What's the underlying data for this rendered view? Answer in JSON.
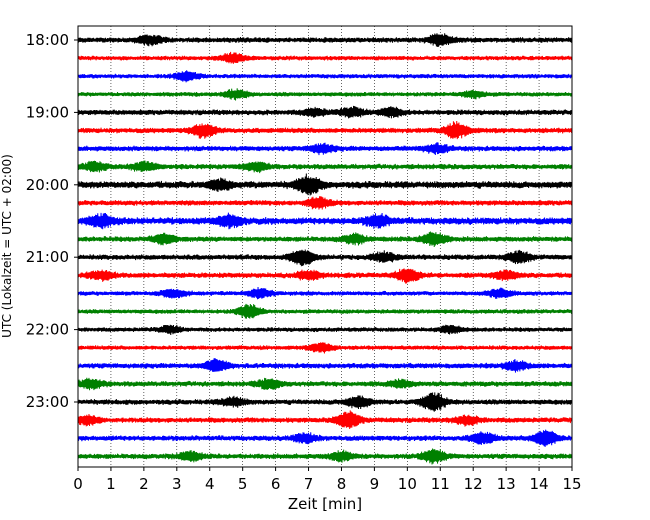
{
  "chart_data": {
    "type": "line",
    "title": "",
    "xlabel": "Zeit  [min]",
    "ylabel": "UTC (Lokalzeit = UTC + 02:00)",
    "xlim": [
      0,
      15
    ],
    "x_ticks": [
      "0",
      "1",
      "2",
      "3",
      "4",
      "5",
      "6",
      "7",
      "8",
      "9",
      "10",
      "11",
      "12",
      "13",
      "14",
      "15"
    ],
    "y_ticks": [
      "18:00",
      "19:00",
      "20:00",
      "21:00",
      "22:00",
      "23:00"
    ],
    "grid": "vertical dotted at each minute",
    "trace_interval_minutes": 15,
    "trace_colors": [
      "#000000",
      "#ff0000",
      "#0000ff",
      "#008000"
    ],
    "traces": [
      {
        "start": "18:00",
        "color": "#000000",
        "amp": 3,
        "bursts": [
          [
            2.2,
            4
          ],
          [
            11.0,
            5
          ]
        ]
      },
      {
        "start": "18:15",
        "color": "#ff0000",
        "amp": 2.5,
        "bursts": [
          [
            4.7,
            4
          ]
        ]
      },
      {
        "start": "18:30",
        "color": "#0000ff",
        "amp": 2.5,
        "bursts": [
          [
            3.3,
            4
          ]
        ]
      },
      {
        "start": "18:45",
        "color": "#008000",
        "amp": 2.5,
        "bursts": [
          [
            4.8,
            4
          ],
          [
            12,
            3
          ]
        ]
      },
      {
        "start": "19:00",
        "color": "#000000",
        "amp": 3,
        "bursts": [
          [
            7.2,
            3
          ],
          [
            8.3,
            4
          ],
          [
            9.5,
            4
          ]
        ]
      },
      {
        "start": "19:15",
        "color": "#ff0000",
        "amp": 3,
        "bursts": [
          [
            3.8,
            6
          ],
          [
            11.5,
            7
          ]
        ]
      },
      {
        "start": "19:30",
        "color": "#0000ff",
        "amp": 3,
        "bursts": [
          [
            7.4,
            4
          ],
          [
            10.9,
            4
          ]
        ]
      },
      {
        "start": "19:45",
        "color": "#008000",
        "amp": 3,
        "bursts": [
          [
            0.5,
            4
          ],
          [
            2.0,
            4
          ],
          [
            5.4,
            4
          ]
        ]
      },
      {
        "start": "20:00",
        "color": "#000000",
        "amp": 4,
        "bursts": [
          [
            7.0,
            8
          ],
          [
            4.3,
            4
          ]
        ]
      },
      {
        "start": "20:15",
        "color": "#ff0000",
        "amp": 3,
        "bursts": [
          [
            7.3,
            5
          ]
        ]
      },
      {
        "start": "20:30",
        "color": "#0000ff",
        "amp": 4,
        "bursts": [
          [
            0.7,
            5
          ],
          [
            4.6,
            5
          ],
          [
            9.1,
            5
          ]
        ]
      },
      {
        "start": "20:45",
        "color": "#008000",
        "amp": 3,
        "bursts": [
          [
            10.8,
            6
          ],
          [
            8.4,
            4
          ],
          [
            2.6,
            4
          ]
        ]
      },
      {
        "start": "21:00",
        "color": "#000000",
        "amp": 3,
        "bursts": [
          [
            6.8,
            7
          ],
          [
            9.3,
            4
          ],
          [
            13.4,
            5
          ]
        ]
      },
      {
        "start": "21:15",
        "color": "#ff0000",
        "amp": 3,
        "bursts": [
          [
            0.7,
            4
          ],
          [
            7.0,
            4
          ],
          [
            10.0,
            6
          ],
          [
            13.0,
            4
          ]
        ]
      },
      {
        "start": "21:30",
        "color": "#0000ff",
        "amp": 2.5,
        "bursts": [
          [
            2.9,
            4
          ],
          [
            5.5,
            4
          ],
          [
            12.8,
            4
          ]
        ]
      },
      {
        "start": "21:45",
        "color": "#008000",
        "amp": 2.5,
        "bursts": [
          [
            5.2,
            6
          ]
        ]
      },
      {
        "start": "22:00",
        "color": "#000000",
        "amp": 2.5,
        "bursts": [
          [
            2.8,
            3
          ],
          [
            11.3,
            3
          ]
        ]
      },
      {
        "start": "22:15",
        "color": "#ff0000",
        "amp": 2.5,
        "bursts": [
          [
            7.4,
            4
          ]
        ]
      },
      {
        "start": "22:30",
        "color": "#0000ff",
        "amp": 3,
        "bursts": [
          [
            4.2,
            5
          ],
          [
            13.3,
            4
          ]
        ]
      },
      {
        "start": "22:45",
        "color": "#008000",
        "amp": 3,
        "bursts": [
          [
            0.4,
            4
          ],
          [
            5.8,
            4
          ],
          [
            9.8,
            3
          ]
        ]
      },
      {
        "start": "23:00",
        "color": "#000000",
        "amp": 3,
        "bursts": [
          [
            10.8,
            8
          ],
          [
            8.5,
            5
          ],
          [
            4.7,
            4
          ]
        ]
      },
      {
        "start": "23:15",
        "color": "#ff0000",
        "amp": 3,
        "bursts": [
          [
            8.2,
            7
          ],
          [
            0.3,
            4
          ],
          [
            11.8,
            4
          ]
        ]
      },
      {
        "start": "23:30",
        "color": "#0000ff",
        "amp": 3,
        "bursts": [
          [
            14.2,
            7
          ],
          [
            12.3,
            5
          ],
          [
            6.9,
            4
          ]
        ]
      },
      {
        "start": "23:45",
        "color": "#008000",
        "amp": 3,
        "bursts": [
          [
            10.8,
            6
          ],
          [
            3.4,
            4
          ],
          [
            8.0,
            4
          ]
        ]
      }
    ]
  }
}
